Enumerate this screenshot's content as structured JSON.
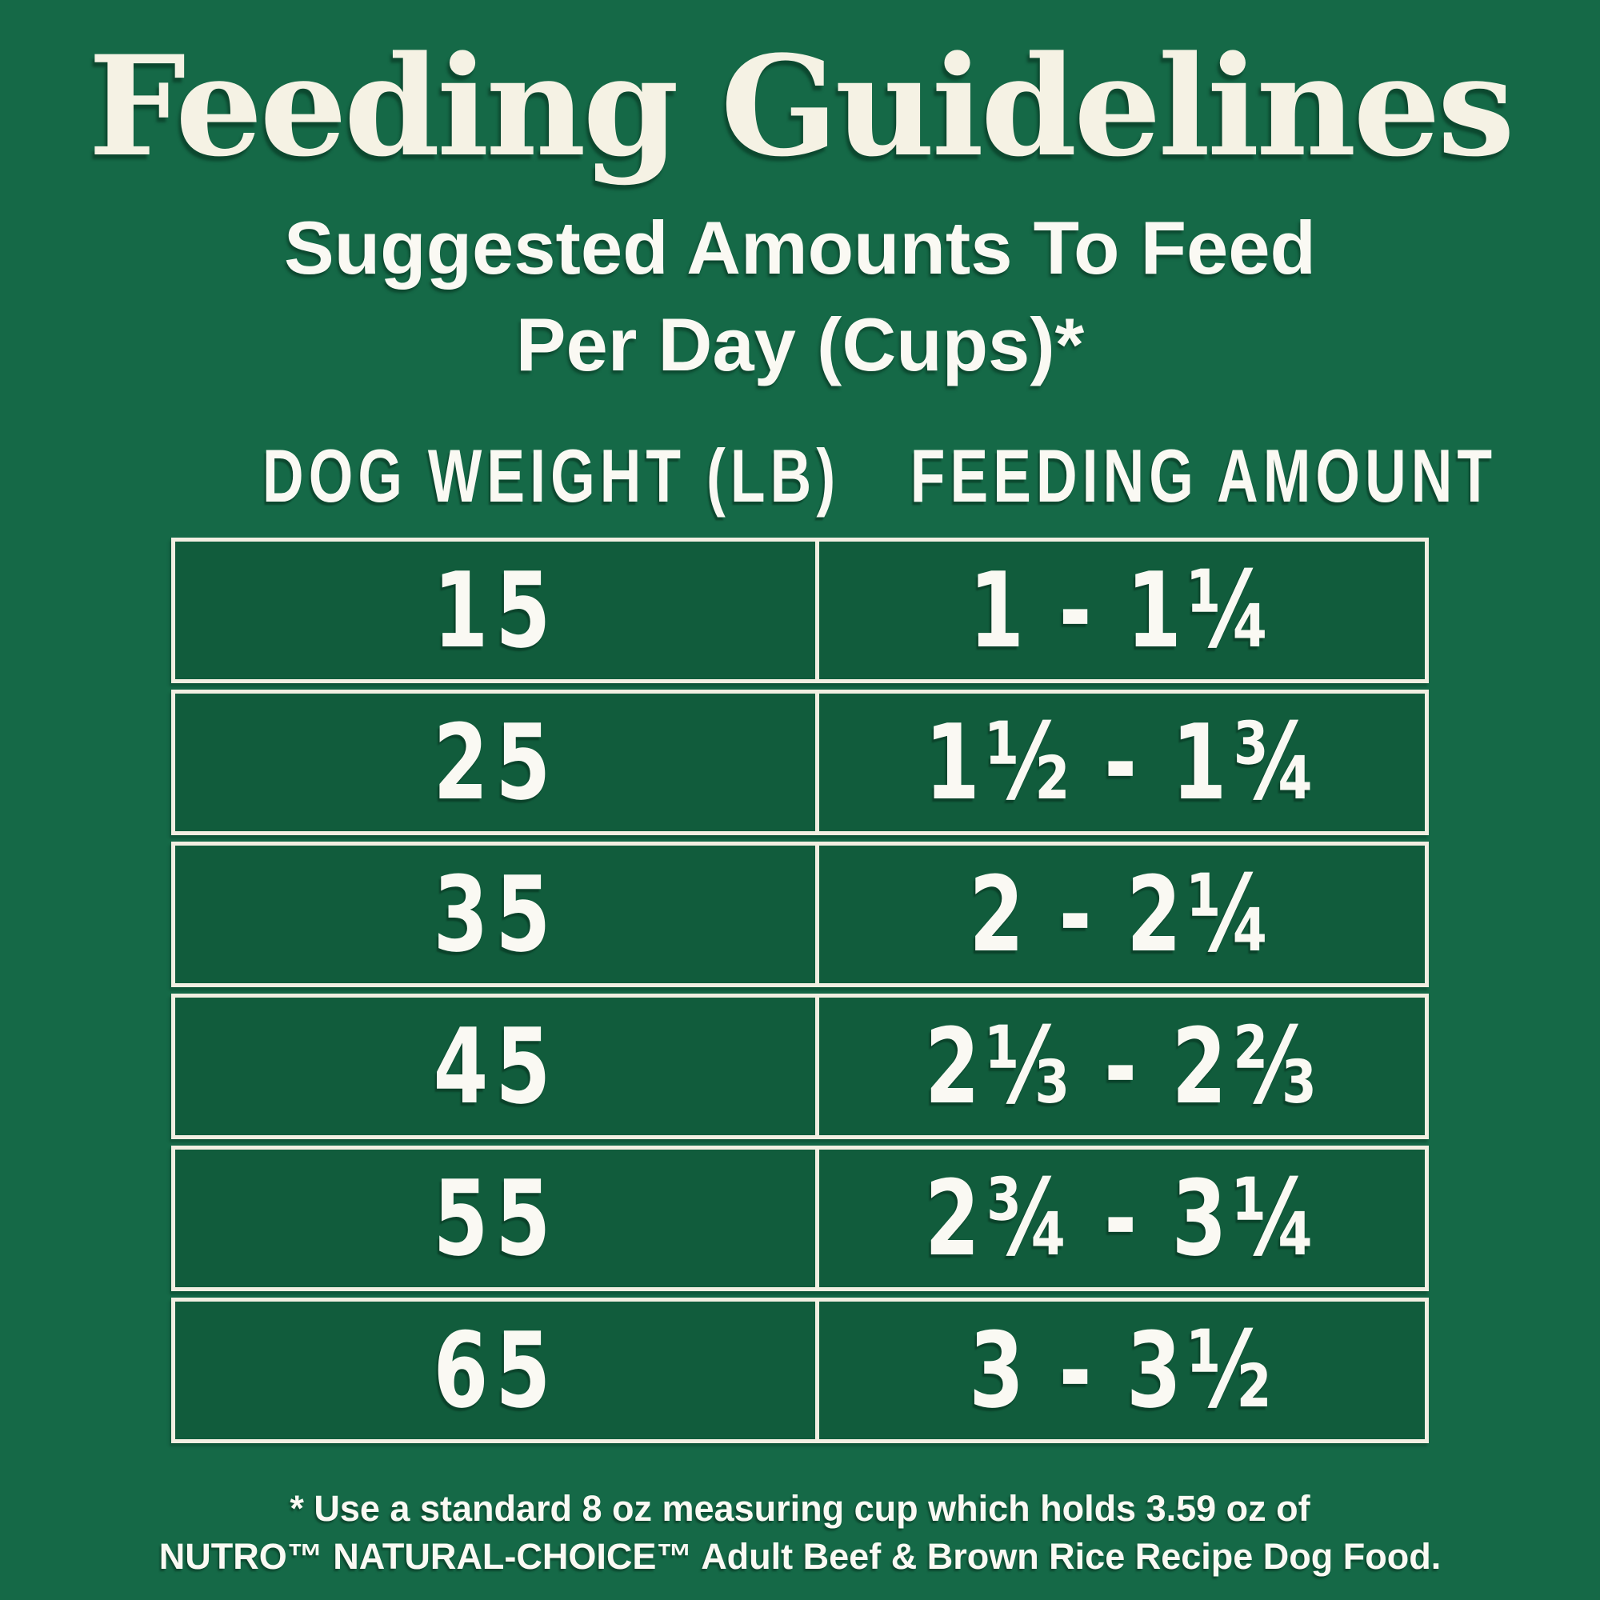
{
  "header": {
    "title": "Feeding Guidelines",
    "subtitle_line1": "Suggested Amounts To Feed",
    "subtitle_line2": "Per Day (Cups)*"
  },
  "table": {
    "columns": [
      "DOG WEIGHT (LB)",
      "FEEDING AMOUNT"
    ],
    "rows": [
      {
        "weight": "15",
        "amount": "1 - 1¼"
      },
      {
        "weight": "25",
        "amount": "1½ - 1¾"
      },
      {
        "weight": "35",
        "amount": "2 - 2¼"
      },
      {
        "weight": "45",
        "amount": "2⅓ - 2⅔"
      },
      {
        "weight": "55",
        "amount": "2¾ - 3¼"
      },
      {
        "weight": "65",
        "amount": "3 - 3½"
      }
    ]
  },
  "footnote": {
    "line1": "* Use a standard 8 oz measuring cup which holds 3.59 oz of",
    "line2": "NUTRO™ NATURAL-CHOICE™ Adult Beef & Brown Rice Recipe Dog Food."
  },
  "colors": {
    "background": "#156947",
    "cell_fill": "#115C3C",
    "line": "#F2EFE2",
    "title_text": "#F5F2E4",
    "body_text": "#FAF9F3"
  }
}
